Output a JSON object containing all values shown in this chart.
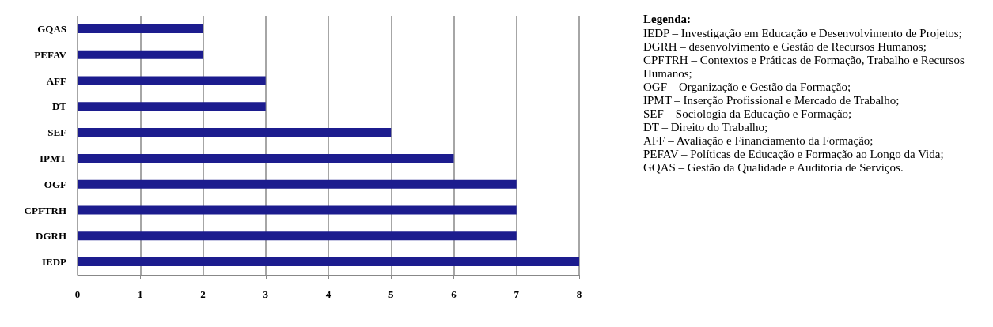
{
  "chart_data": {
    "type": "bar",
    "orientation": "horizontal",
    "categories": [
      "GQAS",
      "PEFAV",
      "AFF",
      "DT",
      "SEF",
      "IPMT",
      "OGF",
      "CPFTRH",
      "DGRH",
      "IEDP"
    ],
    "values": [
      2,
      2,
      3,
      3,
      5,
      6,
      7,
      7,
      7,
      8
    ],
    "color": "#1c1c8e",
    "xlim": [
      0,
      8
    ],
    "xticks": [
      0,
      1,
      2,
      3,
      4,
      5,
      6,
      7,
      8
    ],
    "grid": "x",
    "legend_title": "Legenda:",
    "annotations": [
      "IEDP – Investigação em Educação e Desenvolvimento de Projetos;",
      "DGRH – desenvolvimento e Gestão de Recursos Humanos;",
      "CPFTRH – Contextos e Práticas de Formação, Trabalho e Recursos Humanos;",
      "OGF – Organização e Gestão da Formação;",
      "IPMT – Inserção Profissional e Mercado de Trabalho;",
      "SEF – Sociologia da Educação e Formação;",
      "DT – Direito do Trabalho;",
      "AFF – Avaliação e Financiamento da Formação;",
      "PEFAV – Políticas de Educação e Formação ao Longo da Vida;",
      "GQAS – Gestão da Qualidade e Auditoria de Serviços."
    ]
  }
}
